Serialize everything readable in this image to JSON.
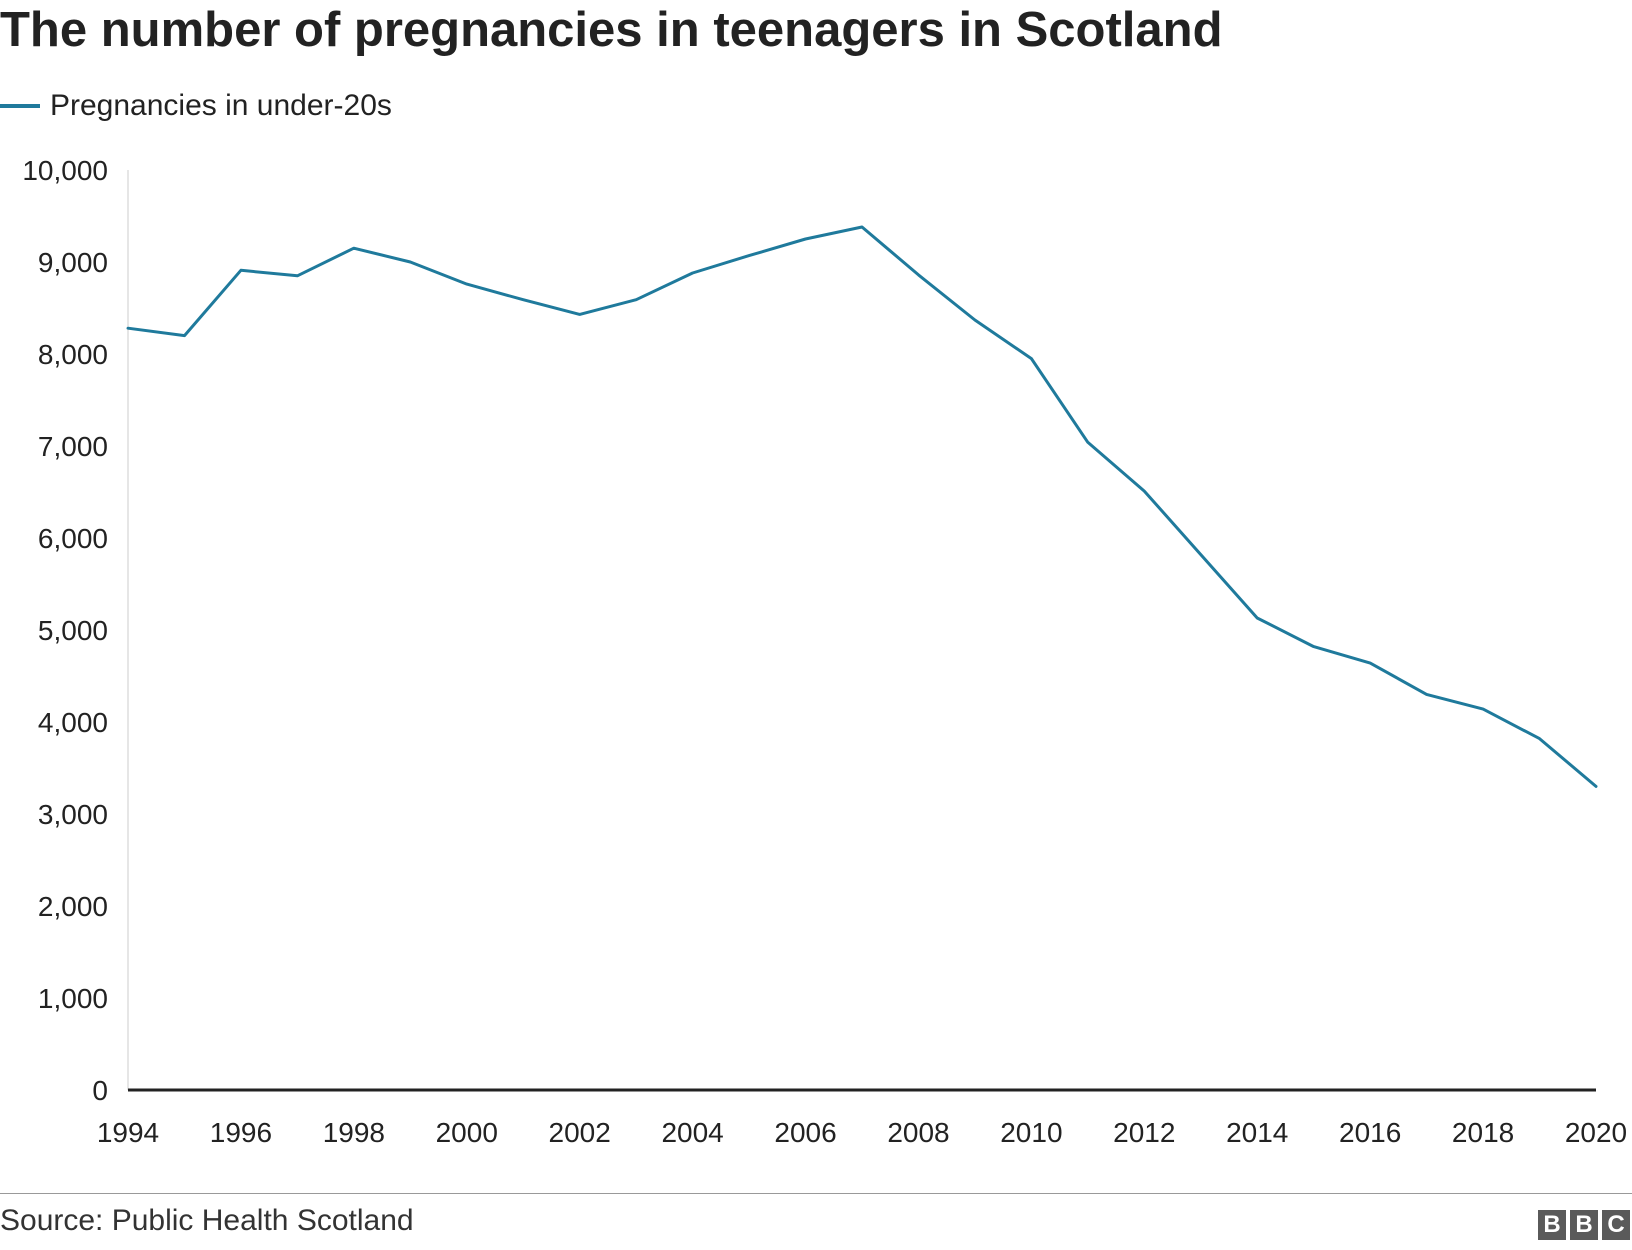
{
  "chart_data": {
    "type": "line",
    "title": "The number of pregnancies in teenagers in Scotland",
    "xlabel": "",
    "ylabel": "",
    "x": [
      1994,
      1995,
      1996,
      1997,
      1998,
      1999,
      2000,
      2001,
      2002,
      2003,
      2004,
      2005,
      2006,
      2007,
      2008,
      2009,
      2010,
      2011,
      2012,
      2013,
      2014,
      2015,
      2016,
      2017,
      2018,
      2019,
      2020
    ],
    "series": [
      {
        "name": "Pregnancies in under-20s",
        "color": "#1f7a9c",
        "values": [
          8280,
          8200,
          8910,
          8850,
          9150,
          9000,
          8760,
          8590,
          8430,
          8590,
          8880,
          9070,
          9250,
          9380,
          8860,
          8370,
          7950,
          7040,
          6510,
          5820,
          5130,
          4820,
          4640,
          4300,
          4140,
          3820,
          3300
        ]
      }
    ],
    "xlim": [
      1994,
      2020
    ],
    "ylim": [
      0,
      10000
    ],
    "x_ticks": [
      1994,
      1996,
      1998,
      2000,
      2002,
      2004,
      2006,
      2008,
      2010,
      2012,
      2014,
      2016,
      2018,
      2020
    ],
    "y_ticks": [
      0,
      1000,
      2000,
      3000,
      4000,
      5000,
      6000,
      7000,
      8000,
      9000,
      10000
    ],
    "x_tick_labels": [
      "1994",
      "1996",
      "1998",
      "2000",
      "2002",
      "2004",
      "2006",
      "2008",
      "2010",
      "2012",
      "2014",
      "2016",
      "2018",
      "2020"
    ],
    "y_tick_labels": [
      "0",
      "1,000",
      "2,000",
      "3,000",
      "4,000",
      "5,000",
      "6,000",
      "7,000",
      "8,000",
      "9,000",
      "10,000"
    ],
    "grid": false,
    "legend_position": "top-left"
  },
  "footer": {
    "source": "Source: Public Health Scotland",
    "logo": {
      "text": "BBC",
      "letters": [
        "B",
        "B",
        "C"
      ]
    }
  }
}
